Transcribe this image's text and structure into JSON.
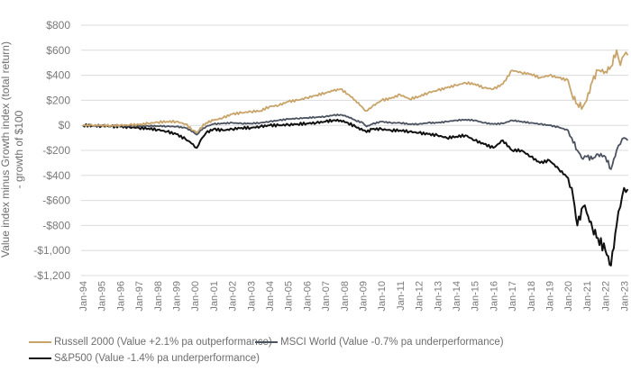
{
  "chart_data": {
    "type": "line",
    "title": "",
    "ylabel": "Value index minus Growth index (total return) - growth of $100",
    "ylabel_lines": [
      "Value index minus Growth index (total return)",
      "- growth of $100"
    ],
    "xlabel": "",
    "ylim": [
      -1200,
      800
    ],
    "y_ticks": [
      800,
      600,
      400,
      200,
      0,
      -200,
      -400,
      -600,
      -800,
      -1000,
      -1200
    ],
    "y_tick_labels": [
      "$800",
      "$600",
      "$400",
      "$200",
      "$0",
      "-$200",
      "-$400",
      "-$600",
      "-$800",
      "-$1,000",
      "-$1,200"
    ],
    "x_tick_labels": [
      "Jan-94",
      "Jan-95",
      "Jan-96",
      "Jan-97",
      "Jan-98",
      "Jan-99",
      "Jan-00",
      "Jan-01",
      "Jan-02",
      "Jan-03",
      "Jan-04",
      "Jan-05",
      "Jan-06",
      "Jan-07",
      "Jan-08",
      "Jan-09",
      "Jan-10",
      "Jan-11",
      "Jan-12",
      "Jan-13",
      "Jan-14",
      "Jan-15",
      "Jan-16",
      "Jan-17",
      "Jan-18",
      "Jan-19",
      "Jan-20",
      "Jan-21",
      "Jan-22",
      "Jan-23"
    ],
    "xlim": [
      1994.0,
      2023.2
    ],
    "grid": true,
    "legend_position": "bottom",
    "series": [
      {
        "name": "Russell 2000 (Value +2.1% pa outperformance)",
        "color": "#c9a46a",
        "x": [
          1994.0,
          1994.5,
          1995.0,
          1995.5,
          1996.0,
          1996.5,
          1997.0,
          1997.5,
          1998.0,
          1998.5,
          1999.0,
          1999.5,
          1999.9,
          2000.1,
          2000.3,
          2000.6,
          2001.0,
          2001.5,
          2002.0,
          2002.5,
          2003.0,
          2003.5,
          2004.0,
          2004.5,
          2005.0,
          2005.5,
          2006.0,
          2006.5,
          2007.0,
          2007.4,
          2007.8,
          2008.2,
          2008.6,
          2009.0,
          2009.2,
          2009.5,
          2010.0,
          2010.5,
          2011.0,
          2011.5,
          2012.0,
          2012.5,
          2013.0,
          2013.5,
          2014.0,
          2014.5,
          2015.0,
          2015.5,
          2016.0,
          2016.5,
          2017.0,
          2017.5,
          2018.0,
          2018.5,
          2019.0,
          2019.5,
          2020.0,
          2020.2,
          2020.5,
          2020.8,
          2021.0,
          2021.3,
          2021.6,
          2022.0,
          2022.3,
          2022.6,
          2022.8,
          2023.0,
          2023.2
        ],
        "values": [
          0,
          0,
          0,
          -2,
          0,
          3,
          5,
          15,
          25,
          30,
          30,
          10,
          -40,
          -60,
          -20,
          20,
          40,
          60,
          90,
          100,
          110,
          115,
          150,
          160,
          190,
          200,
          220,
          240,
          260,
          275,
          290,
          250,
          200,
          140,
          115,
          150,
          200,
          215,
          245,
          210,
          230,
          260,
          280,
          300,
          320,
          340,
          330,
          300,
          290,
          330,
          440,
          420,
          410,
          380,
          400,
          380,
          360,
          250,
          170,
          150,
          200,
          350,
          440,
          430,
          470,
          600,
          480,
          560,
          560
        ]
      },
      {
        "name": "MSCI World (Value -0.7% pa underperformance)",
        "color": "#4b5260",
        "x": [
          1994.0,
          1994.5,
          1995.0,
          1995.5,
          1996.0,
          1996.5,
          1997.0,
          1997.5,
          1998.0,
          1998.5,
          1999.0,
          1999.5,
          1999.9,
          2000.1,
          2000.3,
          2000.6,
          2001.0,
          2001.5,
          2002.0,
          2002.5,
          2003.0,
          2003.5,
          2004.0,
          2004.5,
          2005.0,
          2005.5,
          2006.0,
          2006.5,
          2007.0,
          2007.4,
          2007.8,
          2008.2,
          2008.6,
          2009.0,
          2009.2,
          2009.5,
          2010.0,
          2010.5,
          2011.0,
          2011.5,
          2012.0,
          2012.5,
          2013.0,
          2013.5,
          2014.0,
          2014.5,
          2015.0,
          2015.5,
          2016.0,
          2016.5,
          2017.0,
          2017.5,
          2018.0,
          2018.5,
          2019.0,
          2019.5,
          2020.0,
          2020.2,
          2020.5,
          2020.8,
          2021.0,
          2021.3,
          2021.6,
          2022.0,
          2022.3,
          2022.6,
          2022.8,
          2023.0,
          2023.2
        ],
        "values": [
          0,
          -2,
          -3,
          -5,
          -5,
          -5,
          -5,
          -5,
          -5,
          -8,
          -10,
          -20,
          -50,
          -75,
          -40,
          -10,
          10,
          15,
          20,
          15,
          15,
          20,
          30,
          40,
          50,
          55,
          60,
          65,
          70,
          80,
          85,
          70,
          40,
          20,
          -10,
          10,
          30,
          20,
          20,
          10,
          10,
          20,
          20,
          30,
          40,
          45,
          40,
          20,
          10,
          15,
          40,
          30,
          20,
          10,
          0,
          -15,
          -40,
          -100,
          -200,
          -270,
          -250,
          -270,
          -230,
          -250,
          -350,
          -200,
          -150,
          -100,
          -120
        ]
      },
      {
        "name": "S&P500 (Value -1.4% pa underperformance)",
        "color": "#111111",
        "x": [
          1994.0,
          1994.5,
          1995.0,
          1995.5,
          1996.0,
          1996.5,
          1997.0,
          1997.5,
          1998.0,
          1998.5,
          1999.0,
          1999.5,
          1999.9,
          2000.1,
          2000.3,
          2000.6,
          2001.0,
          2001.5,
          2002.0,
          2002.5,
          2003.0,
          2003.5,
          2004.0,
          2004.5,
          2005.0,
          2005.5,
          2006.0,
          2006.5,
          2007.0,
          2007.4,
          2007.8,
          2008.2,
          2008.6,
          2009.0,
          2009.2,
          2009.5,
          2010.0,
          2010.5,
          2011.0,
          2011.5,
          2012.0,
          2012.5,
          2013.0,
          2013.5,
          2014.0,
          2014.5,
          2015.0,
          2015.5,
          2016.0,
          2016.5,
          2017.0,
          2017.5,
          2018.0,
          2018.5,
          2019.0,
          2019.5,
          2020.0,
          2020.2,
          2020.5,
          2020.8,
          2021.0,
          2021.3,
          2021.6,
          2022.0,
          2022.3,
          2022.6,
          2022.8,
          2023.0,
          2023.2
        ],
        "values": [
          0,
          -3,
          -5,
          -8,
          -10,
          -15,
          -20,
          -25,
          -35,
          -50,
          -70,
          -110,
          -150,
          -180,
          -120,
          -60,
          -30,
          -40,
          -30,
          -20,
          -20,
          -10,
          0,
          0,
          5,
          10,
          15,
          20,
          30,
          40,
          40,
          20,
          -10,
          -40,
          -55,
          -30,
          -30,
          -40,
          -40,
          -50,
          -60,
          -70,
          -80,
          -100,
          -90,
          -80,
          -120,
          -150,
          -180,
          -120,
          -200,
          -200,
          -250,
          -300,
          -280,
          -350,
          -420,
          -500,
          -800,
          -650,
          -700,
          -820,
          -900,
          -1000,
          -1120,
          -800,
          -650,
          -500,
          -510
        ]
      }
    ]
  },
  "legend": {
    "items": [
      {
        "label": "Russell 2000 (Value +2.1% pa outperformance)",
        "color": "#c9a46a"
      },
      {
        "label": "MSCI World (Value -0.7% pa underperformance)",
        "color": "#4b5260"
      },
      {
        "label": "S&P500 (Value -1.4% pa underperformance)",
        "color": "#111111"
      }
    ]
  }
}
